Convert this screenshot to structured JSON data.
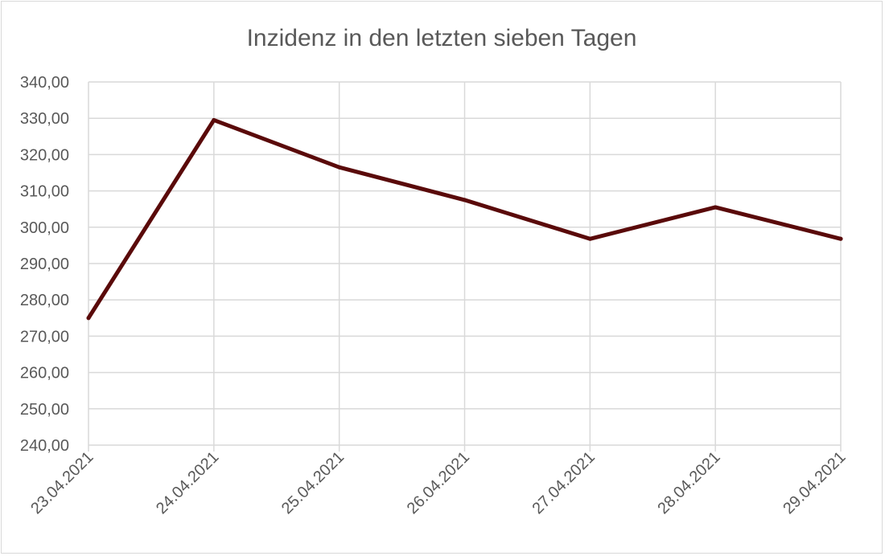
{
  "chart_data": {
    "type": "line",
    "title": "Inzidenz in den letzten sieben Tagen",
    "xlabel": "",
    "ylabel": "",
    "x": [
      "23.04.2021",
      "24.04.2021",
      "25.04.2021",
      "26.04.2021",
      "27.04.2021",
      "28.04.2021",
      "29.04.2021"
    ],
    "series": [
      {
        "values": [
          275.0,
          329.5,
          316.5,
          307.5,
          296.8,
          305.5,
          296.8
        ],
        "color": "#5a0a0a"
      }
    ],
    "ylim": [
      240,
      340
    ],
    "yticks": [
      "240,00",
      "250,00",
      "260,00",
      "270,00",
      "280,00",
      "290,00",
      "300,00",
      "310,00",
      "320,00",
      "330,00",
      "340,00"
    ],
    "grid": true,
    "legend": "none",
    "colors": {
      "grid": "#d9d9d9",
      "text": "#595959"
    }
  }
}
